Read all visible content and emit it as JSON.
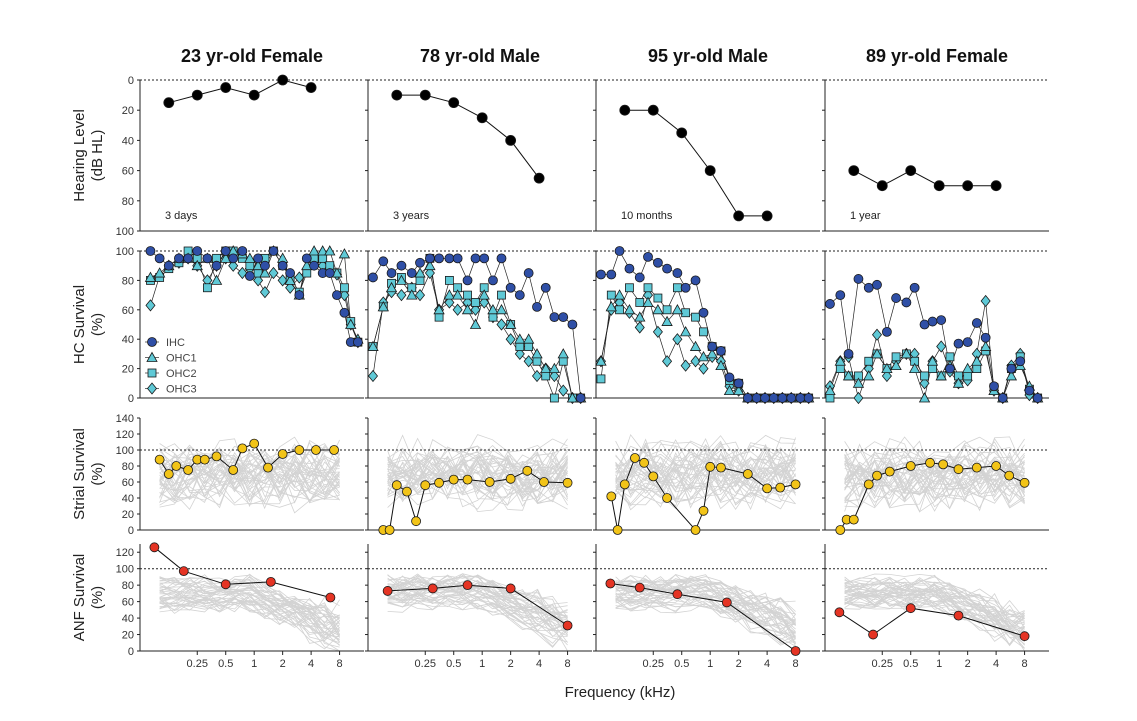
{
  "figure": {
    "xlabel": "Frequency (kHz)",
    "x_tick_labels": [
      "0.25",
      "0.5",
      "1",
      "2",
      "4",
      "8"
    ],
    "x_tick_values": [
      0.25,
      0.5,
      1,
      2,
      4,
      8
    ],
    "row_labels": [
      [
        "Hearing Level",
        "(dB HL)"
      ],
      [
        "HC Survival",
        "(%)"
      ],
      [
        "Strial Survival",
        "(%)"
      ],
      [
        "ANF Survival",
        "(%)"
      ]
    ],
    "legend": [
      "IHC",
      "OHC1",
      "OHC2",
      "OHC3"
    ]
  },
  "colors": {
    "hearing": "#000000",
    "ihc": "#2f4fa6",
    "ohc": "#5fc9d6",
    "strial": "#f2c418",
    "anf": "#e53424",
    "background_traces": "#d3d3d3"
  },
  "chart_data": [
    {
      "type": "line",
      "title": "23 yr-old Female",
      "xscale": "log",
      "hearing_level": {
        "ylim": [
          100,
          0
        ],
        "yticks": [
          0,
          20,
          40,
          60,
          80,
          100
        ],
        "reference": 0,
        "note": "3 days",
        "x": [
          0.125,
          0.25,
          0.5,
          1,
          2,
          4
        ],
        "y": [
          15,
          10,
          5,
          10,
          0,
          5
        ]
      },
      "hc_survival": {
        "ylim": [
          0,
          100
        ],
        "yticks": [
          0,
          20,
          40,
          60,
          80,
          100
        ],
        "reference": 100,
        "x": [
          0.08,
          0.1,
          0.125,
          0.16,
          0.2,
          0.25,
          0.32,
          0.4,
          0.5,
          0.6,
          0.75,
          0.9,
          1.1,
          1.3,
          1.6,
          2,
          2.4,
          3,
          3.6,
          4.3,
          5.3,
          6.3,
          7.5,
          9,
          10.5,
          12.5
        ],
        "series": [
          {
            "name": "IHC",
            "values": [
              100,
              95,
              90,
              95,
              95,
              100,
              95,
              90,
              100,
              95,
              100,
              83,
              95,
              90,
              100,
              90,
              85,
              70,
              95,
              90,
              85,
              85,
              70,
              58,
              38,
              38
            ]
          },
          {
            "name": "OHC1",
            "values": [
              82,
              85,
              90,
              95,
              95,
              90,
              95,
              80,
              95,
              100,
              98,
              95,
              90,
              85,
              100,
              95,
              80,
              70,
              90,
              100,
              100,
              100,
              85,
              98,
              50,
              40
            ]
          },
          {
            "name": "OHC2",
            "values": [
              80,
              82,
              88,
              92,
              100,
              95,
              75,
              95,
              100,
              100,
              95,
              90,
              85,
              95,
              100,
              90,
              82,
              72,
              85,
              95,
              95,
              90,
              85,
              75,
              52,
              38
            ]
          },
          {
            "name": "OHC3",
            "values": [
              63,
              83,
              90,
              92,
              95,
              90,
              80,
              90,
              95,
              90,
              85,
              88,
              80,
              72,
              85,
              80,
              75,
              82,
              88,
              92,
              90,
              88,
              84,
              70,
              50,
              38
            ]
          }
        ]
      },
      "strial_survival": {
        "ylim": [
          0,
          140
        ],
        "yticks": [
          0,
          20,
          40,
          60,
          80,
          100,
          120,
          140
        ],
        "reference": 100,
        "x": [
          0.1,
          0.125,
          0.15,
          0.2,
          0.25,
          0.3,
          0.4,
          0.6,
          0.75,
          1,
          1.4,
          2,
          3,
          4.5,
          7
        ],
        "y": [
          88,
          70,
          80,
          75,
          88,
          88,
          92,
          75,
          102,
          108,
          78,
          95,
          100,
          100,
          100
        ]
      },
      "anf_survival": {
        "ylim": [
          0,
          130
        ],
        "yticks": [
          0,
          20,
          40,
          60,
          80,
          100,
          120
        ],
        "reference": 100,
        "x": [
          0.088,
          0.18,
          0.5,
          1.5,
          6.4
        ],
        "y": [
          126,
          97,
          81,
          84,
          65
        ]
      }
    },
    {
      "type": "line",
      "title": "78 yr-old Male",
      "xscale": "log",
      "hearing_level": {
        "ylim": [
          100,
          0
        ],
        "yticks": [
          0,
          20,
          40,
          60,
          80,
          100
        ],
        "reference": 0,
        "note": "3 years",
        "x": [
          0.125,
          0.25,
          0.5,
          1,
          2,
          4
        ],
        "y": [
          10,
          10,
          15,
          25,
          40,
          65
        ]
      },
      "hc_survival": {
        "ylim": [
          0,
          100
        ],
        "yticks": [
          0,
          20,
          40,
          60,
          80,
          100
        ],
        "reference": 100,
        "x": [
          0.07,
          0.09,
          0.11,
          0.14,
          0.18,
          0.22,
          0.28,
          0.35,
          0.45,
          0.55,
          0.7,
          0.85,
          1.05,
          1.3,
          1.6,
          2,
          2.5,
          3.1,
          3.8,
          4.7,
          5.8,
          7.2,
          9,
          11
        ],
        "series": [
          {
            "name": "IHC",
            "values": [
              82,
              93,
              85,
              90,
              85,
              92,
              95,
              95,
              95,
              95,
              80,
              95,
              95,
              80,
              95,
              75,
              70,
              85,
              62,
              75,
              55,
              55,
              50,
              0
            ]
          },
          {
            "name": "OHC1",
            "values": [
              35,
              62,
              75,
              80,
              70,
              85,
              90,
              60,
              70,
              70,
              60,
              50,
              70,
              60,
              60,
              50,
              40,
              40,
              30,
              20,
              20,
              30,
              0,
              0
            ]
          },
          {
            "name": "OHC2",
            "values": [
              35,
              62,
              78,
              82,
              75,
              80,
              95,
              55,
              80,
              75,
              70,
              65,
              75,
              55,
              70,
              50,
              35,
              35,
              25,
              15,
              0,
              25,
              0,
              0
            ]
          },
          {
            "name": "OHC3",
            "values": [
              15,
              65,
              72,
              70,
              75,
              70,
              85,
              60,
              65,
              60,
              65,
              60,
              65,
              55,
              50,
              40,
              30,
              25,
              15,
              20,
              15,
              5,
              0,
              0
            ]
          }
        ]
      },
      "strial_survival": {
        "ylim": [
          0,
          140
        ],
        "yticks": [
          0,
          20,
          40,
          60,
          80,
          100,
          120,
          140
        ],
        "reference": 100,
        "x": [
          0.09,
          0.105,
          0.125,
          0.16,
          0.2,
          0.25,
          0.35,
          0.5,
          0.7,
          1.2,
          2,
          3,
          4.5,
          8
        ],
        "y": [
          0,
          0,
          56,
          48,
          11,
          56,
          59,
          63,
          63,
          60,
          64,
          74,
          60,
          59
        ]
      },
      "anf_survival": {
        "ylim": [
          0,
          130
        ],
        "yticks": [
          0,
          20,
          40,
          60,
          80,
          100,
          120
        ],
        "reference": 100,
        "x": [
          0.1,
          0.3,
          0.7,
          2,
          8
        ],
        "y": [
          73,
          76,
          80,
          76,
          31
        ]
      }
    },
    {
      "type": "line",
      "title": "95 yr-old Male",
      "xscale": "log",
      "hearing_level": {
        "ylim": [
          100,
          0
        ],
        "yticks": [
          0,
          20,
          40,
          60,
          80,
          100
        ],
        "reference": 0,
        "note": "10 months",
        "x": [
          0.125,
          0.25,
          0.5,
          1,
          2,
          4
        ],
        "y": [
          20,
          20,
          35,
          60,
          90,
          90
        ]
      },
      "hc_survival": {
        "ylim": [
          0,
          100
        ],
        "yticks": [
          0,
          20,
          40,
          60,
          80,
          100
        ],
        "reference": 100,
        "x": [
          0.07,
          0.09,
          0.11,
          0.14,
          0.18,
          0.22,
          0.28,
          0.35,
          0.45,
          0.55,
          0.7,
          0.85,
          1.05,
          1.3,
          1.6,
          2,
          2.5,
          3.1,
          3.8,
          4.7,
          5.8,
          7.2,
          9,
          11
        ],
        "series": [
          {
            "name": "IHC",
            "values": [
              84,
              84,
              100,
              88,
              82,
              96,
              92,
              88,
              85,
              75,
              80,
              58,
              35,
              32,
              14,
              10,
              0,
              0,
              0,
              0,
              0,
              0,
              0,
              0
            ]
          },
          {
            "name": "OHC1",
            "values": [
              25,
              62,
              70,
              60,
              55,
              65,
              60,
              52,
              60,
              45,
              35,
              28,
              30,
              22,
              5,
              5,
              0,
              0,
              0,
              0,
              0,
              0,
              0,
              0
            ]
          },
          {
            "name": "OHC2",
            "values": [
              13,
              70,
              60,
              75,
              65,
              75,
              68,
              60,
              75,
              58,
              55,
              45,
              35,
              32,
              12,
              10,
              0,
              0,
              0,
              0,
              0,
              0,
              0,
              0
            ]
          },
          {
            "name": "OHC3",
            "values": [
              25,
              60,
              65,
              58,
              48,
              70,
              45,
              25,
              40,
              22,
              25,
              20,
              28,
              25,
              8,
              5,
              0,
              0,
              0,
              0,
              0,
              0,
              0,
              0
            ]
          }
        ]
      },
      "strial_survival": {
        "ylim": [
          0,
          140
        ],
        "yticks": [
          0,
          20,
          40,
          60,
          80,
          100,
          120,
          140
        ],
        "reference": 100,
        "x": [
          0.09,
          0.105,
          0.125,
          0.16,
          0.2,
          0.25,
          0.35,
          0.7,
          0.85,
          1,
          1.3,
          2.5,
          4,
          5.5,
          8
        ],
        "y": [
          42,
          0,
          57,
          90,
          84,
          67,
          40,
          0,
          24,
          79,
          78,
          70,
          52,
          53,
          57
        ]
      },
      "anf_survival": {
        "ylim": [
          0,
          130
        ],
        "yticks": [
          0,
          20,
          40,
          60,
          80,
          100,
          120
        ],
        "reference": 100,
        "x": [
          0.088,
          0.18,
          0.45,
          1.5,
          8
        ],
        "y": [
          82,
          77,
          69,
          59,
          0
        ]
      }
    },
    {
      "type": "line",
      "title": "89 yr-old Female",
      "xscale": "log",
      "hearing_level": {
        "ylim": [
          100,
          0
        ],
        "yticks": [
          0,
          20,
          40,
          60,
          80,
          100
        ],
        "reference": 0,
        "note": "1 year",
        "x": [
          0.125,
          0.25,
          0.5,
          1,
          2,
          4
        ],
        "y": [
          60,
          70,
          60,
          70,
          70,
          70
        ]
      },
      "hc_survival": {
        "ylim": [
          0,
          100
        ],
        "yticks": [
          0,
          20,
          40,
          60,
          80,
          100
        ],
        "reference": 100,
        "x": [
          0.07,
          0.09,
          0.11,
          0.14,
          0.18,
          0.22,
          0.28,
          0.35,
          0.45,
          0.55,
          0.7,
          0.85,
          1.05,
          1.3,
          1.6,
          2,
          2.5,
          3.1,
          3.8,
          4.7,
          5.8,
          7.2,
          9,
          11
        ],
        "series": [
          {
            "name": "IHC",
            "values": [
              64,
              70,
              30,
              81,
              75,
              77,
              45,
              68,
              65,
              75,
              50,
              52,
              53,
              20,
              37,
              38,
              51,
              41,
              8,
              0,
              20,
              25,
              5,
              0
            ]
          },
          {
            "name": "OHC1",
            "values": [
              5,
              25,
              15,
              10,
              15,
              30,
              20,
              22,
              30,
              20,
              0,
              25,
              15,
              22,
              10,
              20,
              25,
              35,
              5,
              0,
              15,
              22,
              8,
              0
            ]
          },
          {
            "name": "OHC2",
            "values": [
              0,
              20,
              15,
              15,
              25,
              30,
              20,
              28,
              30,
              25,
              15,
              20,
              15,
              28,
              15,
              15,
              20,
              32,
              7,
              0,
              20,
              28,
              6,
              0
            ]
          },
          {
            "name": "OHC3",
            "values": [
              8,
              25,
              28,
              0,
              20,
              43,
              15,
              25,
              30,
              30,
              10,
              25,
              35,
              18,
              10,
              12,
              30,
              66,
              5,
              0,
              22,
              30,
              2,
              0
            ]
          }
        ]
      },
      "strial_survival": {
        "ylim": [
          0,
          140
        ],
        "yticks": [
          0,
          20,
          40,
          60,
          80,
          100,
          120,
          140
        ],
        "reference": 100,
        "x": [
          0.09,
          0.105,
          0.125,
          0.18,
          0.22,
          0.3,
          0.5,
          0.8,
          1.1,
          1.6,
          2.5,
          4,
          5.5,
          8
        ],
        "y": [
          0,
          13,
          13,
          57,
          68,
          73,
          80,
          84,
          82,
          76,
          78,
          80,
          68,
          59
        ]
      },
      "anf_survival": {
        "ylim": [
          0,
          130
        ],
        "yticks": [
          0,
          20,
          40,
          60,
          80,
          100,
          120
        ],
        "reference": 100,
        "x": [
          0.088,
          0.2,
          0.5,
          1.6,
          8
        ],
        "y": [
          47,
          20,
          52,
          43,
          18
        ]
      }
    }
  ]
}
